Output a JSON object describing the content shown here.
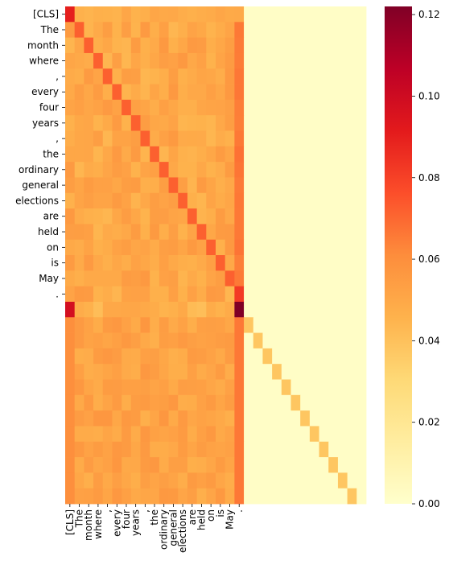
{
  "chart_data": {
    "type": "heatmap",
    "title": "",
    "xlabel": "",
    "ylabel": "",
    "row_labels": [
      "[CLS]",
      "The",
      "month",
      "where",
      ",",
      "every",
      "four",
      "years",
      ",",
      "the",
      "ordinary",
      "general",
      "elections",
      "are",
      "held",
      "on",
      "is",
      "May",
      "."
    ],
    "col_labels": [
      "[CLS]",
      "The",
      "month",
      "where",
      ",",
      "every",
      "four",
      "years",
      ",",
      "the",
      "ordinary",
      "general",
      "elections",
      "are",
      "held",
      "on",
      "is",
      "May",
      "."
    ],
    "grid_size": 32,
    "colorbar": {
      "colormap": "YlOrRd",
      "min": 0.0,
      "max": 0.122,
      "ticks": [
        0.0,
        0.02,
        0.04,
        0.06,
        0.08,
        0.1,
        0.12
      ],
      "tick_labels": [
        "0.00",
        "0.02",
        "0.04",
        "0.06",
        "0.08",
        "0.10",
        "0.12"
      ]
    },
    "matrix_description_values": {
      "cls_row_first_cell": 0.09,
      "cls_row_others": 0.048,
      "token_block_base": 0.05,
      "token_block_diagonal": 0.072,
      "final_period_column": 0.066,
      "period_row_to_period": 0.082,
      "pad_row0_first_cell": 0.098,
      "pad_row0_to_period_col": 0.122,
      "pad_rows_to_tokens": 0.052,
      "pad_diagonal": 0.038,
      "pad_other": 0.002
    }
  }
}
